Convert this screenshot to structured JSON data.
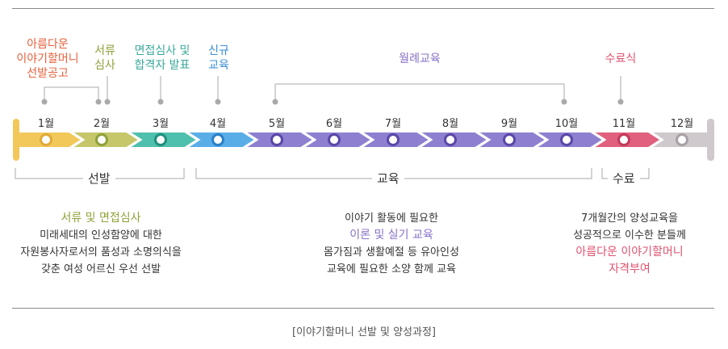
{
  "top_labels": [
    {
      "id": "recruit",
      "lines": [
        "아름다운",
        "이야기할머니",
        "선발공고"
      ],
      "color": "#e8603c"
    },
    {
      "id": "doc_review",
      "lines": [
        "서류",
        "심사"
      ],
      "color": "#8ea23a"
    },
    {
      "id": "interview",
      "lines": [
        "면접심사 및",
        "합격자 발표"
      ],
      "color": "#3aa89a"
    },
    {
      "id": "new_training",
      "lines": [
        "신규",
        "교육"
      ],
      "color": "#3b8fd6"
    },
    {
      "id": "monthly",
      "lines": [
        "월례교육"
      ],
      "color": "#8870c8"
    },
    {
      "id": "completion",
      "lines": [
        "수료식"
      ],
      "color": "#e0536f"
    }
  ],
  "months": [
    "1월",
    "2월",
    "3월",
    "4월",
    "5월",
    "6월",
    "7월",
    "8월",
    "9월",
    "10월",
    "11월",
    "12월"
  ],
  "colors": {
    "selection": [
      "#f2c85a",
      "#c5c76a",
      "#4fc0ad"
    ],
    "training_start": "#5aaee8",
    "training": "#8e7fd0",
    "completion": "#e0607e",
    "end": "#cfc8cc"
  },
  "groups": {
    "selection": "선발",
    "training": "교육",
    "completion": "수료"
  },
  "descriptions": {
    "selection": {
      "title": "서류 및 면접심사",
      "title_color": "#8ea23a",
      "lines": [
        "미래세대의 인성함양에 대한",
        "자원봉사자로서의 품성과 소명의식을",
        "갖춘 여성 어르신 우선 선발"
      ]
    },
    "training": {
      "line1": "이야기 활동에 필요한",
      "highlight": "이론 및 실기 교육",
      "highlight_color": "#8870c8",
      "lines": [
        "몸가짐과 생활예절 등 유아인성",
        "교육에 필요한 소양 함께 교육"
      ]
    },
    "completion": {
      "lines": [
        "7개월간의 양성교육을",
        "성공적으로 이수한 분들께"
      ],
      "highlight_lines": [
        "아름다운 이야기할머니",
        "자격부여"
      ],
      "highlight_color": "#e0536f"
    }
  },
  "caption": "[이야기할머니 선발 및 양성과정]"
}
